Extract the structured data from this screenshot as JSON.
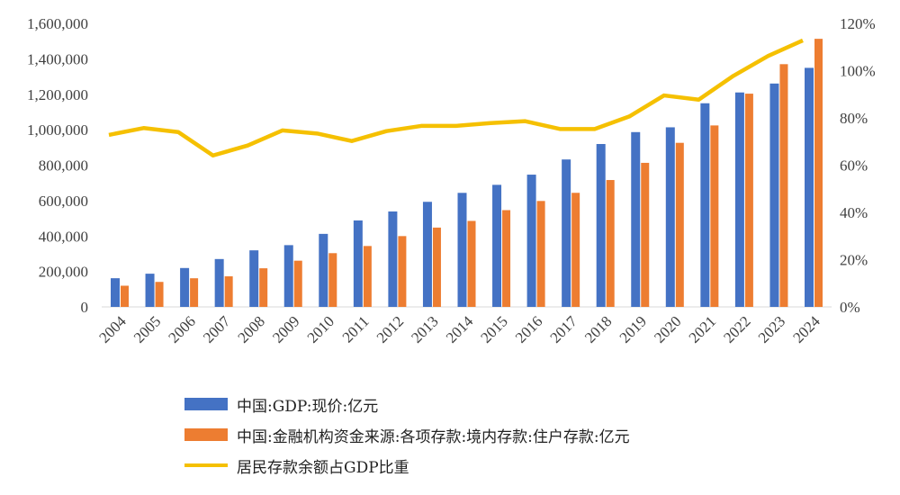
{
  "chart_data": {
    "type": "bar",
    "categories": [
      "2004",
      "2005",
      "2006",
      "2007",
      "2008",
      "2009",
      "2010",
      "2011",
      "2012",
      "2013",
      "2014",
      "2015",
      "2016",
      "2017",
      "2018",
      "2019",
      "2020",
      "2021",
      "2022",
      "2023",
      "2024"
    ],
    "series": [
      {
        "name": "中国:GDP:现价:亿元",
        "type": "bar",
        "axis": "left",
        "color": "#4472c4",
        "values": [
          161840,
          187319,
          219439,
          270092,
          319245,
          348518,
          412119,
          487940,
          538580,
          592963,
          643563,
          688858,
          746395,
          832036,
          919281,
          986515,
          1013567,
          1149237,
          1210207,
          1260582,
          1349084
        ]
      },
      {
        "name": "中国:金融机构资金来源:各项存款:境内存款:住户存款:亿元",
        "type": "bar",
        "axis": "left",
        "color": "#ed7d31",
        "values": [
          119555,
          141051,
          161587,
          172534,
          217885,
          260772,
          303302,
          343636,
          399551,
          447602,
          485261,
          546078,
          597751,
          643768,
          716038,
          813017,
          925986,
          1024136,
          1203387,
          1369895,
          1513000
        ]
      },
      {
        "name": "居民存款余额占GDP比重",
        "type": "line",
        "axis": "right",
        "color": "#f5c000",
        "values": [
          72.8,
          75.7,
          74.0,
          64.1,
          68.3,
          74.7,
          73.4,
          70.2,
          74.4,
          76.6,
          76.6,
          77.8,
          78.6,
          75.3,
          75.3,
          80.6,
          89.5,
          87.7,
          97.8,
          106.2,
          112.8
        ]
      }
    ],
    "ylim": [
      0,
      1600000
    ],
    "yticks": [
      "0",
      "200,000",
      "400,000",
      "600,000",
      "800,000",
      "1,000,000",
      "1,200,000",
      "1,400,000",
      "1,600,000"
    ],
    "y2lim": [
      0,
      120
    ],
    "y2ticks": [
      "0%",
      "20%",
      "40%",
      "60%",
      "80%",
      "100%",
      "120%"
    ],
    "grid": false,
    "legend": "bottom-left"
  }
}
